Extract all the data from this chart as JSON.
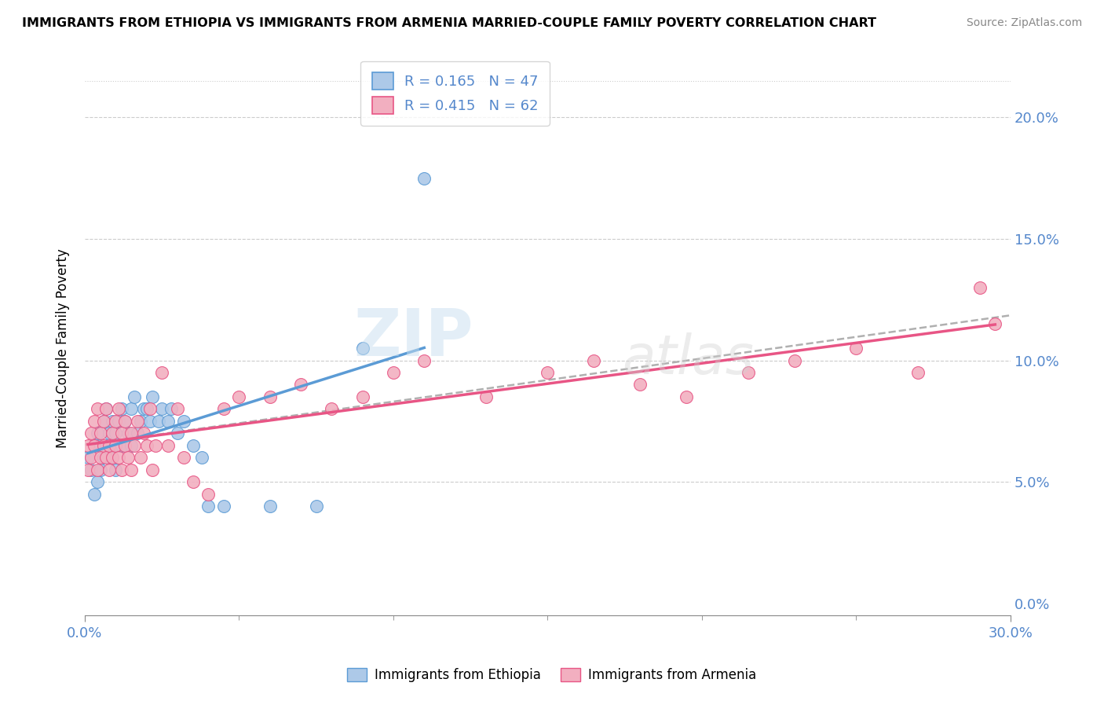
{
  "title": "IMMIGRANTS FROM ETHIOPIA VS IMMIGRANTS FROM ARMENIA MARRIED-COUPLE FAMILY POVERTY CORRELATION CHART",
  "source": "Source: ZipAtlas.com",
  "ylabel": "Married-Couple Family Poverty",
  "xlim": [
    0.0,
    0.3
  ],
  "ylim": [
    -0.005,
    0.215
  ],
  "legend1_r": "0.165",
  "legend1_n": "47",
  "legend2_r": "0.415",
  "legend2_n": "62",
  "color_ethiopia": "#adc9e8",
  "color_armenia": "#f2afc0",
  "color_line_ethiopia": "#5b9bd5",
  "color_line_armenia": "#e85585",
  "color_trend_dashed": "#b0b0b0",
  "background": "#ffffff",
  "ethiopia_x": [
    0.001,
    0.002,
    0.003,
    0.003,
    0.004,
    0.004,
    0.005,
    0.005,
    0.006,
    0.006,
    0.007,
    0.007,
    0.008,
    0.008,
    0.009,
    0.009,
    0.01,
    0.01,
    0.011,
    0.011,
    0.012,
    0.012,
    0.013,
    0.014,
    0.015,
    0.015,
    0.016,
    0.017,
    0.018,
    0.019,
    0.02,
    0.021,
    0.022,
    0.024,
    0.025,
    0.027,
    0.028,
    0.03,
    0.032,
    0.035,
    0.038,
    0.04,
    0.045,
    0.06,
    0.075,
    0.09,
    0.11
  ],
  "ethiopia_y": [
    0.06,
    0.055,
    0.065,
    0.045,
    0.07,
    0.05,
    0.065,
    0.055,
    0.075,
    0.06,
    0.08,
    0.065,
    0.07,
    0.06,
    0.075,
    0.065,
    0.07,
    0.055,
    0.075,
    0.065,
    0.08,
    0.065,
    0.075,
    0.07,
    0.08,
    0.065,
    0.085,
    0.07,
    0.075,
    0.08,
    0.08,
    0.075,
    0.085,
    0.075,
    0.08,
    0.075,
    0.08,
    0.07,
    0.075,
    0.065,
    0.06,
    0.04,
    0.04,
    0.04,
    0.04,
    0.105,
    0.175
  ],
  "armenia_x": [
    0.001,
    0.001,
    0.002,
    0.002,
    0.003,
    0.003,
    0.004,
    0.004,
    0.005,
    0.005,
    0.006,
    0.006,
    0.007,
    0.007,
    0.008,
    0.008,
    0.009,
    0.009,
    0.01,
    0.01,
    0.011,
    0.011,
    0.012,
    0.012,
    0.013,
    0.013,
    0.014,
    0.015,
    0.015,
    0.016,
    0.017,
    0.018,
    0.019,
    0.02,
    0.021,
    0.022,
    0.023,
    0.025,
    0.027,
    0.03,
    0.032,
    0.035,
    0.04,
    0.045,
    0.05,
    0.06,
    0.07,
    0.08,
    0.09,
    0.1,
    0.11,
    0.13,
    0.15,
    0.165,
    0.18,
    0.195,
    0.215,
    0.23,
    0.25,
    0.27,
    0.29,
    0.295
  ],
  "armenia_y": [
    0.065,
    0.055,
    0.07,
    0.06,
    0.075,
    0.065,
    0.08,
    0.055,
    0.07,
    0.06,
    0.075,
    0.065,
    0.08,
    0.06,
    0.065,
    0.055,
    0.07,
    0.06,
    0.075,
    0.065,
    0.08,
    0.06,
    0.07,
    0.055,
    0.065,
    0.075,
    0.06,
    0.07,
    0.055,
    0.065,
    0.075,
    0.06,
    0.07,
    0.065,
    0.08,
    0.055,
    0.065,
    0.095,
    0.065,
    0.08,
    0.06,
    0.05,
    0.045,
    0.08,
    0.085,
    0.085,
    0.09,
    0.08,
    0.085,
    0.095,
    0.1,
    0.085,
    0.095,
    0.1,
    0.09,
    0.085,
    0.095,
    0.1,
    0.105,
    0.095,
    0.13,
    0.115
  ],
  "watermark_top": "ZIP",
  "watermark_bottom": "atlas"
}
